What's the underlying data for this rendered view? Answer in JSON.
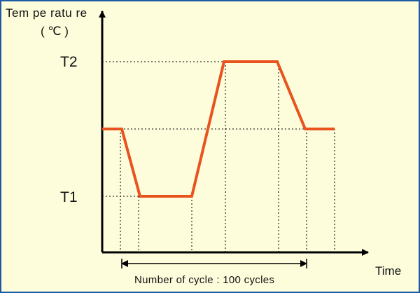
{
  "diagram": {
    "y_axis_label": "Tem pe ratu re",
    "y_axis_unit": "( ℃ )",
    "x_axis_label": "Time",
    "level_high_label": "T2",
    "level_low_label": "T1",
    "cycle_note": "Number of cycle : 100 cycles",
    "cycle_count": 100,
    "profile_color": "#e8531e",
    "axis_color": "#000000",
    "background_color": "#fdfddc",
    "border_color": "#1d5aa6"
  }
}
